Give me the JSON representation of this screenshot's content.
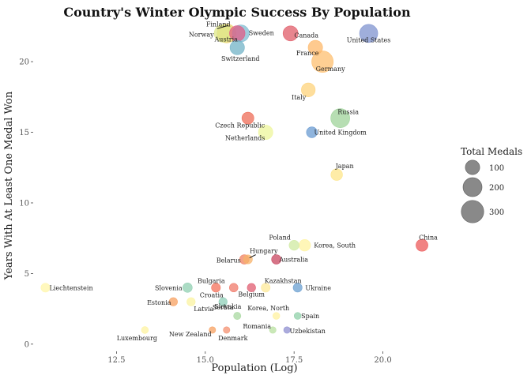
{
  "chart_data": {
    "type": "scatter",
    "title": "Country's Winter Olympic Success By Population",
    "xlabel": "Population (Log)",
    "ylabel": "Years With At Least One Medal Won",
    "xlim": [
      10.2,
      21.5
    ],
    "ylim": [
      -0.4,
      22.8
    ],
    "xticks": [
      "12.5",
      "15.0",
      "17.5",
      "20.0"
    ],
    "xtick_values": [
      12.5,
      15.0,
      17.5,
      20.0
    ],
    "yticks": [
      "0",
      "5",
      "10",
      "15",
      "20"
    ],
    "ytick_values": [
      0,
      5,
      10,
      15,
      20
    ],
    "grid": false,
    "legend": {
      "title": "Total Medals",
      "placement": "right",
      "entries": [
        {
          "label": "100",
          "value": 100
        },
        {
          "label": "200",
          "value": 200
        },
        {
          "label": "300",
          "value": 300
        }
      ]
    },
    "points": [
      {
        "label": "Finland",
        "x": 15.5,
        "y": 22,
        "medals": 167,
        "color": "#dfe88a"
      },
      {
        "label": "Norway",
        "x": 15.6,
        "y": 22,
        "medals": 200,
        "color": "#e8d36b"
      },
      {
        "label": "Sweden",
        "x": 16.0,
        "y": 22,
        "medals": 150,
        "color": "#7fbcd2"
      },
      {
        "label": "Austria",
        "x": 15.9,
        "y": 22,
        "medals": 120,
        "color": "#e05c86"
      },
      {
        "label": "Switzerland",
        "x": 15.9,
        "y": 21,
        "medals": 100,
        "color": "#72b3c7"
      },
      {
        "label": "Canada",
        "x": 17.4,
        "y": 22,
        "medals": 110,
        "color": "#e05c68"
      },
      {
        "label": "United States",
        "x": 19.6,
        "y": 22,
        "medals": 180,
        "color": "#7f93cf"
      },
      {
        "label": "France",
        "x": 18.1,
        "y": 21,
        "medals": 100,
        "color": "#fdb86a"
      },
      {
        "label": "Germany",
        "x": 18.3,
        "y": 20,
        "medals": 270,
        "color": "#fdbf6f"
      },
      {
        "label": "Italy",
        "x": 17.9,
        "y": 18,
        "medals": 90,
        "color": "#fed37b"
      },
      {
        "label": "Russia",
        "x": 18.8,
        "y": 16,
        "medals": 200,
        "color": "#9fd39a"
      },
      {
        "label": "Czech Republic",
        "x": 16.2,
        "y": 16,
        "medals": 60,
        "color": "#ee6c57"
      },
      {
        "label": "Netherlands",
        "x": 16.7,
        "y": 15,
        "medals": 100,
        "color": "#eef59b"
      },
      {
        "label": "United Kingdom",
        "x": 18.0,
        "y": 15,
        "medals": 45,
        "color": "#6a9bd1"
      },
      {
        "label": "Japan",
        "x": 18.7,
        "y": 12,
        "medals": 55,
        "color": "#fde68a"
      },
      {
        "label": "China",
        "x": 21.1,
        "y": 7,
        "medals": 60,
        "color": "#ec5a5a"
      },
      {
        "label": "Poland",
        "x": 17.5,
        "y": 7,
        "medals": 35,
        "color": "#cfeaa0"
      },
      {
        "label": "Korea, South",
        "x": 17.8,
        "y": 7,
        "medals": 55,
        "color": "#fff3a0"
      },
      {
        "label": "Hungary",
        "x": 16.2,
        "y": 6,
        "medals": 25,
        "color": "#f7b36a"
      },
      {
        "label": "Belarus",
        "x": 16.1,
        "y": 6,
        "medals": 30,
        "color": "#f08060"
      },
      {
        "label": "Australia",
        "x": 17.0,
        "y": 6,
        "medals": 30,
        "color": "#c8465f"
      },
      {
        "label": "Liechtenstein",
        "x": 10.5,
        "y": 4,
        "medals": 25,
        "color": "#fff6a8"
      },
      {
        "label": "Slovenia",
        "x": 14.5,
        "y": 4,
        "medals": 30,
        "color": "#8fcfb0"
      },
      {
        "label": "Bulgaria",
        "x": 15.3,
        "y": 4,
        "medals": 25,
        "color": "#f4705a"
      },
      {
        "label": "Croatia",
        "x": 15.8,
        "y": 4,
        "medals": 22,
        "color": "#f07a6a"
      },
      {
        "label": "Belgium",
        "x": 16.3,
        "y": 4,
        "medals": 20,
        "color": "#e05c70"
      },
      {
        "label": "Kazakhstan",
        "x": 16.7,
        "y": 4,
        "medals": 25,
        "color": "#fde99a"
      },
      {
        "label": "Ukraine",
        "x": 17.6,
        "y": 4,
        "medals": 25,
        "color": "#6a9fd0"
      },
      {
        "label": "Estonia",
        "x": 14.1,
        "y": 3,
        "medals": 20,
        "color": "#f7a060"
      },
      {
        "label": "Latvia",
        "x": 14.6,
        "y": 3,
        "medals": 20,
        "color": "#fbf3a0"
      },
      {
        "label": "Slovakia",
        "x": 15.5,
        "y": 3,
        "medals": 20,
        "color": "#8fcfb8"
      },
      {
        "label": "Korea, North",
        "x": 17.0,
        "y": 2,
        "medals": 10,
        "color": "#fff2a0"
      },
      {
        "label": "Spain",
        "x": 17.6,
        "y": 2,
        "medals": 10,
        "color": "#8fd0a8"
      },
      {
        "label": "Serbia",
        "x": 15.9,
        "y": 2,
        "medals": 12,
        "color": "#a8d8a0"
      },
      {
        "label": "Romania",
        "x": 16.9,
        "y": 1,
        "medals": 8,
        "color": "#b8e0a0"
      },
      {
        "label": "Uzbekistan",
        "x": 17.3,
        "y": 1,
        "medals": 8,
        "color": "#8f8fd0"
      },
      {
        "label": "New Zealand",
        "x": 15.2,
        "y": 1,
        "medals": 8,
        "color": "#f7a060"
      },
      {
        "label": "Denmark",
        "x": 15.6,
        "y": 1,
        "medals": 8,
        "color": "#f49070"
      },
      {
        "label": "Luxembourg",
        "x": 13.3,
        "y": 1,
        "medals": 10,
        "color": "#fdf3a0"
      }
    ]
  }
}
